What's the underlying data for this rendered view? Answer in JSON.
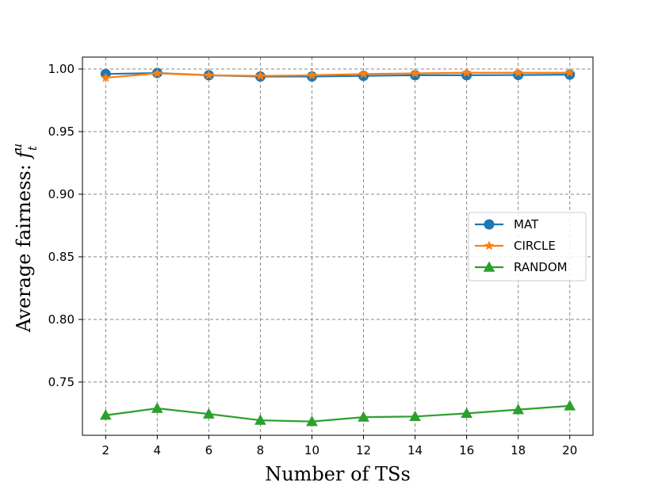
{
  "chart_data": {
    "type": "line",
    "title": "",
    "xlabel": "Number of TSs",
    "ylabel_text": "Average fairness: ",
    "ylabel_symbol": "f",
    "ylabel_superscript": "u",
    "ylabel_subscript": "t",
    "x": [
      2,
      4,
      6,
      8,
      10,
      12,
      14,
      16,
      18,
      20
    ],
    "xlim": [
      1.1,
      20.9
    ],
    "ylim": [
      0.7075,
      1.0095
    ],
    "xticks": [
      2,
      4,
      6,
      8,
      10,
      12,
      14,
      16,
      18,
      20
    ],
    "yticks": [
      "0.75",
      "0.80",
      "0.85",
      "0.90",
      "0.95",
      "1.00"
    ],
    "grid": true,
    "legend_position": "center-right",
    "series": [
      {
        "name": "MAT",
        "color": "#1f77b4",
        "marker": "circle",
        "values": [
          0.996,
          0.9968,
          0.995,
          0.994,
          0.994,
          0.9945,
          0.995,
          0.995,
          0.9952,
          0.9955
        ]
      },
      {
        "name": "CIRCLE",
        "color": "#ff7f0e",
        "marker": "star",
        "values": [
          0.993,
          0.9965,
          0.995,
          0.9945,
          0.995,
          0.996,
          0.9965,
          0.997,
          0.997,
          0.997
        ]
      },
      {
        "name": "RANDOM",
        "color": "#2ca02c",
        "marker": "triangle",
        "values": [
          0.7235,
          0.729,
          0.7245,
          0.7195,
          0.7185,
          0.722,
          0.7225,
          0.725,
          0.728,
          0.731
        ]
      }
    ]
  }
}
